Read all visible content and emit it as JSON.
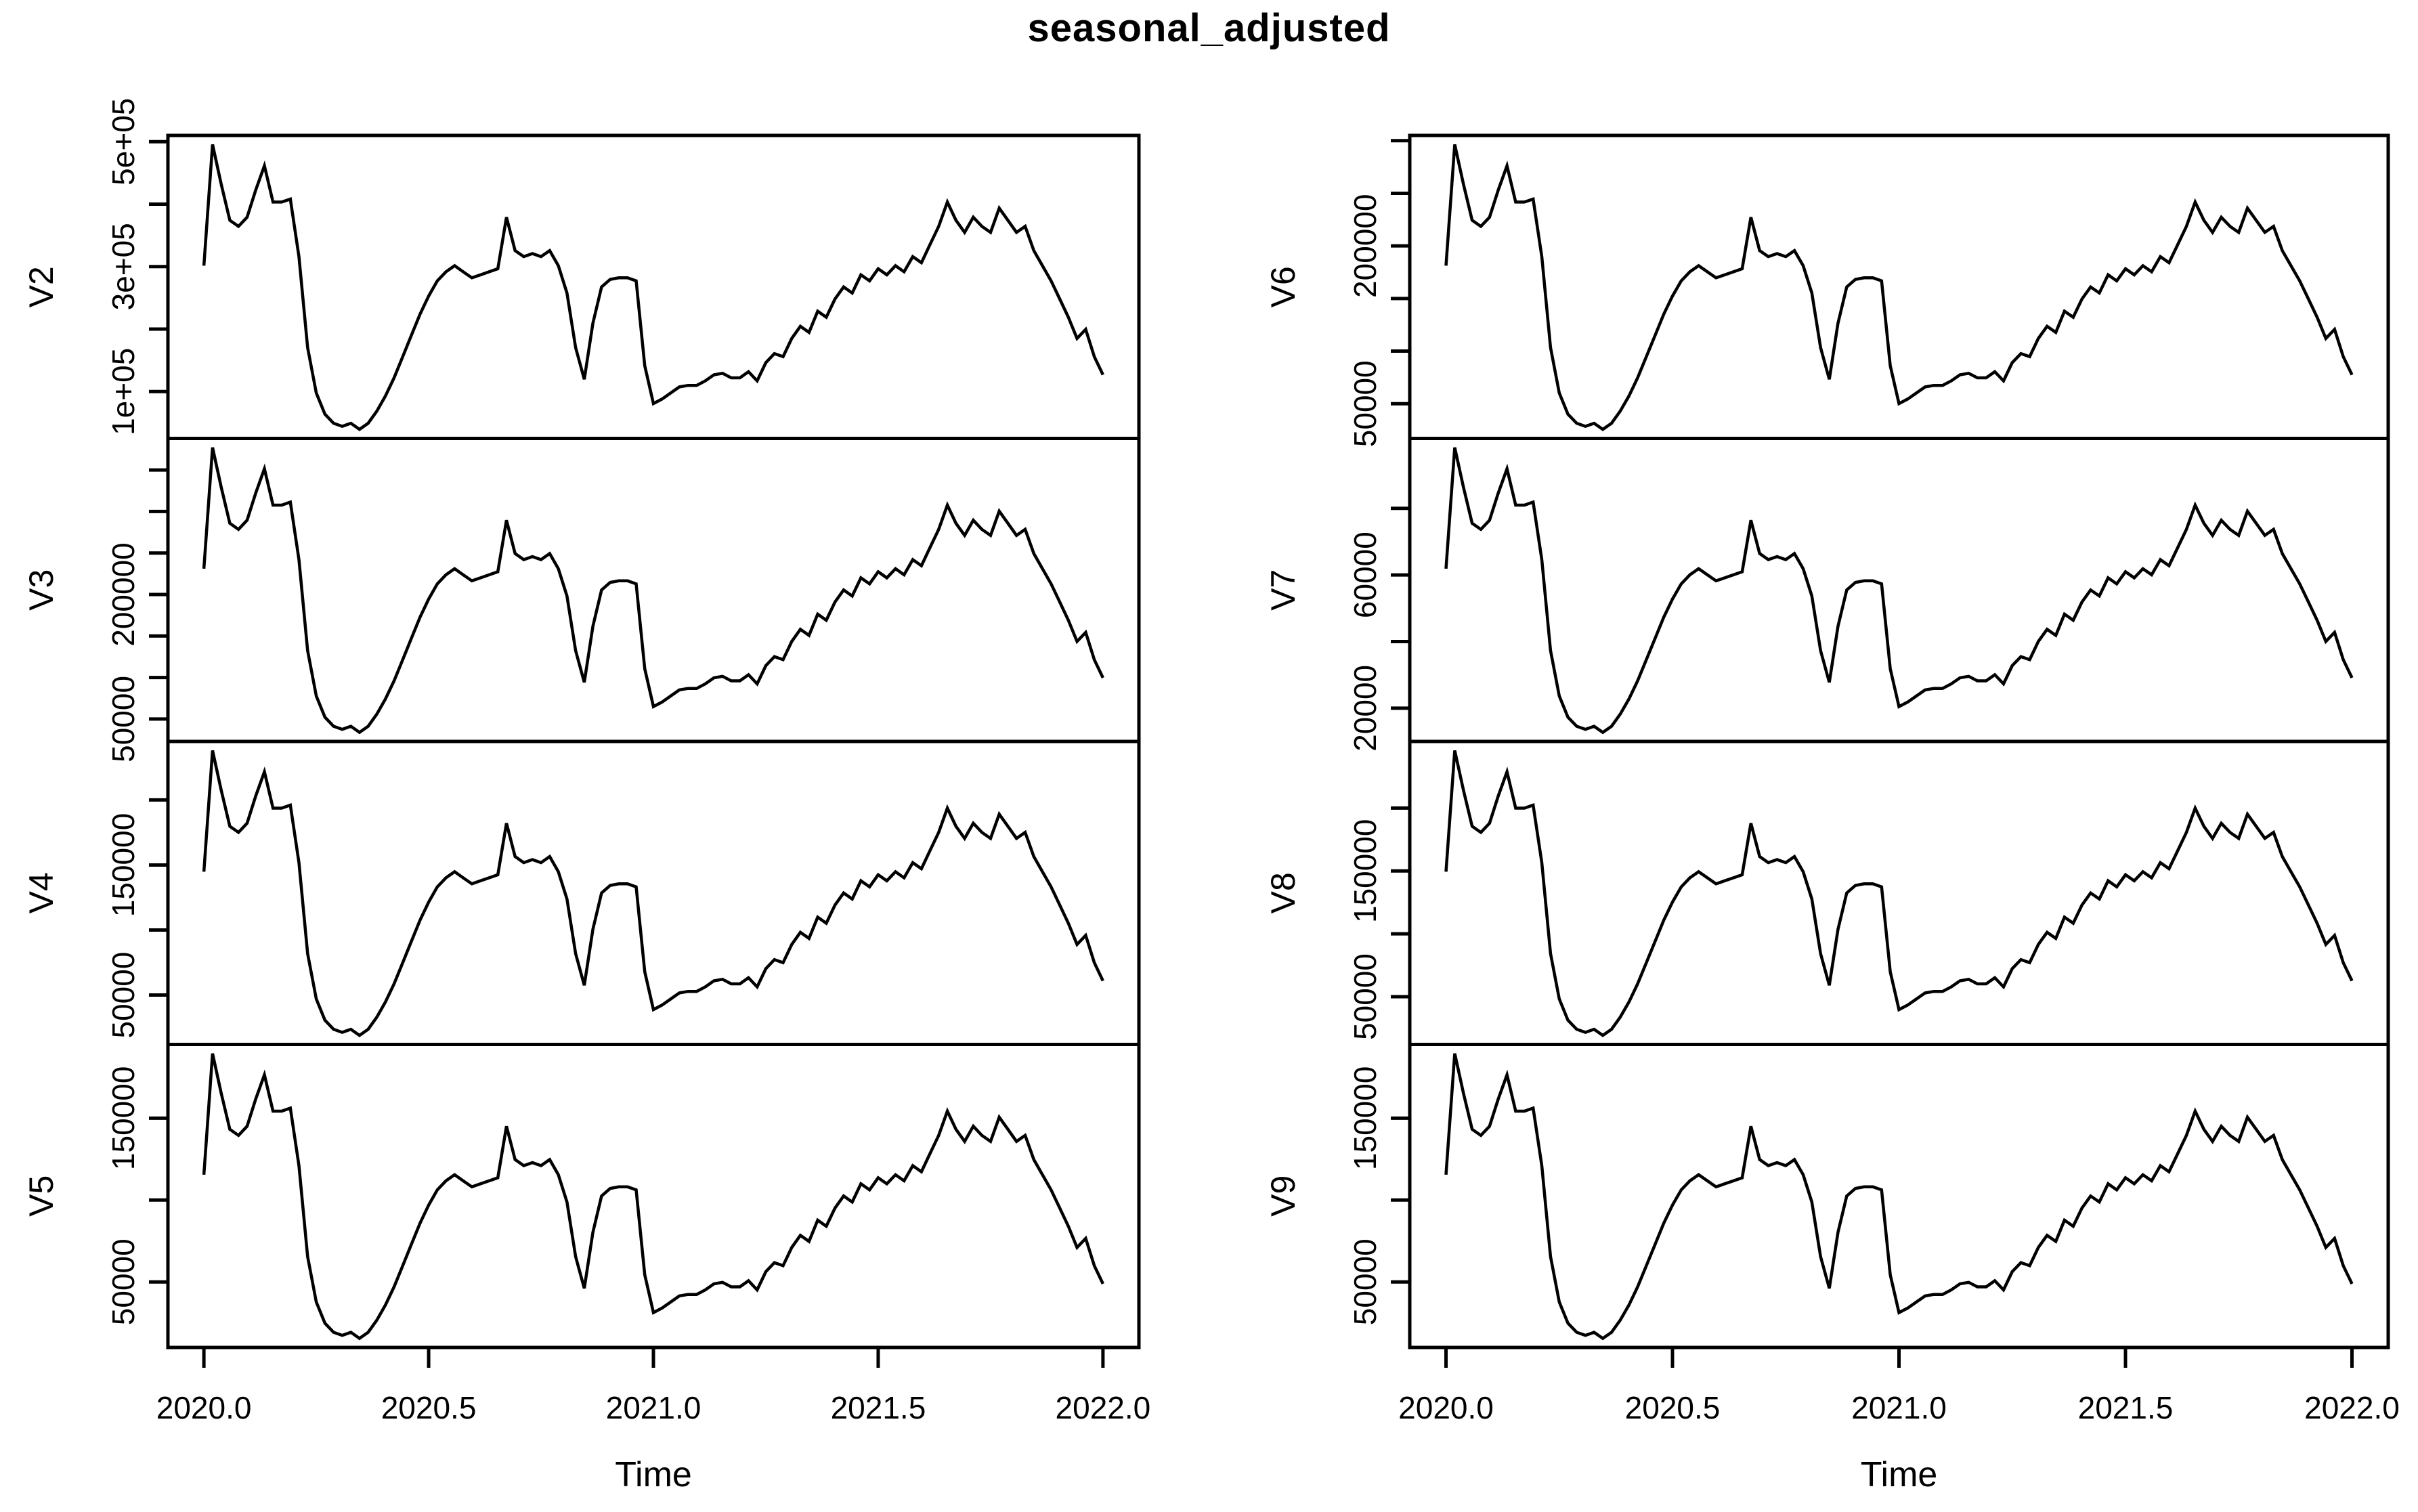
{
  "title": "seasonal_adjusted",
  "chart_data": {
    "type": "line",
    "title": "seasonal_adjusted",
    "xlabel": "Time",
    "layout": {
      "ncol": 2,
      "nrow_per_col": 4,
      "grid": false,
      "legend": "none"
    },
    "line_color": "#000000",
    "background_color": "#ffffff",
    "x_axis": {
      "ticks": [
        2020.0,
        2020.5,
        2021.0,
        2021.5,
        2022.0
      ],
      "tick_labels": [
        "2020.0",
        "2020.5",
        "2021.0",
        "2021.5",
        "2022.0"
      ],
      "xlim": [
        2019.92,
        2022.08
      ]
    },
    "sampling": {
      "x_start": 2020.0,
      "x_end": 2022.0,
      "n_points": 105,
      "frequency": "weekly"
    },
    "value_mapping": "value_i = ylim[0] + shape_norm[i] * (ylim[1] - ylim[0]) for each panel",
    "shape_norm": [
      0.57,
      0.97,
      0.84,
      0.72,
      0.7,
      0.73,
      0.82,
      0.9,
      0.78,
      0.78,
      0.79,
      0.6,
      0.3,
      0.15,
      0.08,
      0.05,
      0.04,
      0.05,
      0.03,
      0.05,
      0.09,
      0.14,
      0.2,
      0.27,
      0.34,
      0.41,
      0.47,
      0.52,
      0.55,
      0.57,
      0.55,
      0.53,
      0.54,
      0.55,
      0.56,
      0.73,
      0.62,
      0.6,
      0.61,
      0.6,
      0.62,
      0.57,
      0.48,
      0.3,
      0.195,
      0.38,
      0.5,
      0.525,
      0.53,
      0.53,
      0.52,
      0.24,
      0.115,
      0.13,
      0.15,
      0.17,
      0.175,
      0.175,
      0.19,
      0.21,
      0.215,
      0.2,
      0.2,
      0.22,
      0.19,
      0.25,
      0.28,
      0.27,
      0.33,
      0.37,
      0.35,
      0.42,
      0.4,
      0.46,
      0.5,
      0.48,
      0.54,
      0.52,
      0.56,
      0.54,
      0.57,
      0.55,
      0.6,
      0.58,
      0.64,
      0.7,
      0.78,
      0.72,
      0.68,
      0.73,
      0.7,
      0.68,
      0.76,
      0.72,
      0.68,
      0.7,
      0.62,
      0.57,
      0.52,
      0.46,
      0.4,
      0.33,
      0.36,
      0.27,
      0.21
    ],
    "panels": [
      {
        "name": "V2",
        "column": 0,
        "row": 0,
        "ylim": [
          25000,
          510000
        ],
        "yticks": [
          100000,
          200000,
          300000,
          400000,
          500000
        ],
        "ytick_labels": [
          "1e+05",
          "",
          "3e+05",
          "",
          "5e+05"
        ]
      },
      {
        "name": "V3",
        "column": 0,
        "row": 1,
        "ylim": [
          23000,
          388000
        ],
        "yticks": [
          50000,
          100000,
          150000,
          200000,
          250000,
          300000,
          350000
        ],
        "ytick_labels": [
          "50000",
          "",
          "",
          "200000",
          "",
          "",
          ""
        ]
      },
      {
        "name": "V4",
        "column": 0,
        "row": 2,
        "ylim": [
          12000,
          245000
        ],
        "yticks": [
          50000,
          100000,
          150000,
          200000
        ],
        "ytick_labels": [
          "50000",
          "",
          "150000",
          ""
        ]
      },
      {
        "name": "V5",
        "column": 0,
        "row": 3,
        "ylim": [
          10000,
          195000
        ],
        "yticks": [
          50000,
          100000,
          150000
        ],
        "ytick_labels": [
          "50000",
          "",
          "150000"
        ]
      },
      {
        "name": "V6",
        "column": 1,
        "row": 0,
        "ylim": [
          17000,
          305000
        ],
        "yticks": [
          50000,
          100000,
          150000,
          200000,
          250000,
          300000
        ],
        "ytick_labels": [
          "50000",
          "",
          "",
          "200000",
          "",
          ""
        ]
      },
      {
        "name": "V7",
        "column": 1,
        "row": 1,
        "ylim": [
          10000,
          101000
        ],
        "yticks": [
          20000,
          40000,
          60000,
          80000
        ],
        "ytick_labels": [
          "20000",
          "",
          "60000",
          ""
        ]
      },
      {
        "name": "V8",
        "column": 1,
        "row": 2,
        "ylim": [
          12000,
          253000
        ],
        "yticks": [
          50000,
          100000,
          150000,
          200000
        ],
        "ytick_labels": [
          "50000",
          "",
          "150000",
          ""
        ]
      },
      {
        "name": "V9",
        "column": 1,
        "row": 3,
        "ylim": [
          10000,
          195000
        ],
        "yticks": [
          50000,
          100000,
          150000
        ],
        "ytick_labels": [
          "50000",
          "",
          "150000"
        ]
      }
    ]
  }
}
